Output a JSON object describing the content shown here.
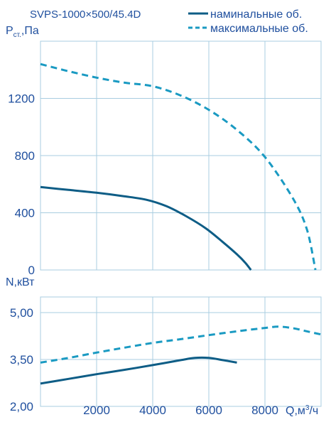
{
  "chart_data": [
    {
      "type": "line",
      "title": "SVPS-1000×500/45.4D",
      "ylabel": "Pст.,Па",
      "ylabel_main": "P",
      "ylabel_sub": "ст.",
      "ylabel_unit": ",Па",
      "xlim": [
        0,
        10000
      ],
      "ylim": [
        0,
        1600
      ],
      "yticks": [
        0,
        400,
        800,
        1200
      ],
      "ytick_labels": [
        "0",
        "400",
        "800",
        "1200"
      ],
      "grid": true,
      "legend_position": "top-right",
      "series": [
        {
          "name": "наминальные об.",
          "style": "solid",
          "x": [
            0,
            1000,
            2000,
            3000,
            3800,
            4500,
            5200,
            5900,
            6500,
            7000,
            7300,
            7500
          ],
          "y": [
            580,
            560,
            540,
            515,
            490,
            445,
            375,
            290,
            195,
            110,
            50,
            0
          ]
        },
        {
          "name": "максимальные об.",
          "style": "dashed",
          "x": [
            0,
            1000,
            2000,
            3000,
            4000,
            5000,
            6000,
            7000,
            8000,
            9000,
            9500,
            9800
          ],
          "y": [
            1440,
            1390,
            1345,
            1310,
            1285,
            1220,
            1120,
            980,
            790,
            500,
            280,
            0
          ]
        }
      ]
    },
    {
      "type": "line",
      "ylabel": "N,кВт",
      "xlabel": "Q,м³/ч",
      "xlabel_main": "Q,м",
      "xlabel_sup": "3",
      "xlabel_tail": "/ч",
      "xlim": [
        0,
        10000
      ],
      "ylim": [
        2.0,
        5.5
      ],
      "xticks": [
        2000,
        4000,
        6000,
        8000
      ],
      "xtick_labels": [
        "2000",
        "4000",
        "6000",
        "8000"
      ],
      "yticks": [
        2.0,
        3.5,
        5.0
      ],
      "ytick_labels": [
        "2,00",
        "3,50",
        "5,00"
      ],
      "grid": true,
      "series": [
        {
          "name": "наминальные об.",
          "style": "solid",
          "x": [
            0,
            1000,
            2000,
            3000,
            4000,
            5000,
            5500,
            6000,
            6500,
            7000
          ],
          "y": [
            2.73,
            2.88,
            3.03,
            3.17,
            3.32,
            3.48,
            3.55,
            3.55,
            3.48,
            3.4
          ]
        },
        {
          "name": "максимальные об.",
          "style": "dashed",
          "x": [
            0,
            1000,
            2000,
            3000,
            4000,
            5000,
            6000,
            7000,
            8000,
            8500,
            9000,
            9500,
            10000
          ],
          "y": [
            3.4,
            3.55,
            3.72,
            3.88,
            4.03,
            4.15,
            4.28,
            4.4,
            4.51,
            4.55,
            4.5,
            4.4,
            4.3
          ]
        }
      ]
    }
  ],
  "colors": {
    "solid_line": "#0e5d86",
    "dashed_line": "#1a9ac2",
    "text": "#1f4f9e",
    "grid": "#a8cde0"
  }
}
